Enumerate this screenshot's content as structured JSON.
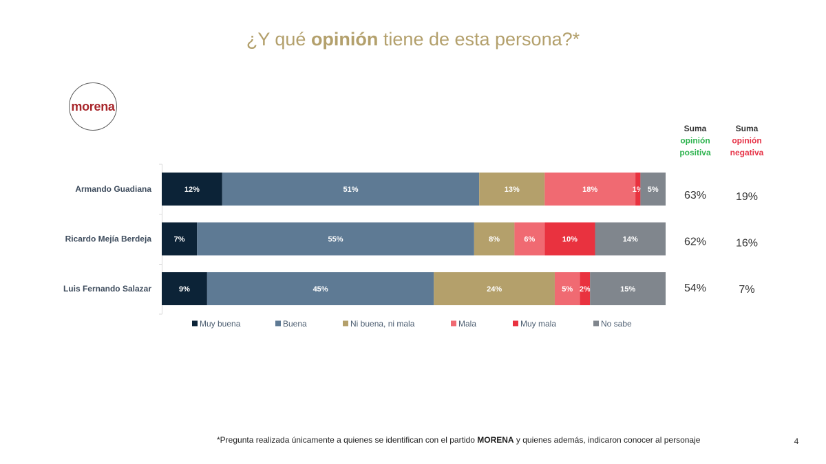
{
  "slide": {
    "logo_text": "morena",
    "footnote_pre": "*Pregunta realizada únicamente a quienes se identifican con el partido ",
    "footnote_bold": "MORENA",
    "footnote_post": " y quienes además, indicaron conocer al personaje",
    "page_number": "4"
  },
  "colors": {
    "title": "#b3a06c",
    "logo": "#a8262b",
    "heading": "#333333",
    "positive": "#2eb34f",
    "negative": "#e63347"
  },
  "chart_data": {
    "type": "bar",
    "stacked": true,
    "horizontal": true,
    "title": {
      "pre": "¿Y qué ",
      "bold": "opinión",
      "post": " tiene de esta persona?*"
    },
    "categories": [
      "Armando Guadiana",
      "Ricardo Mejía Berdeja",
      "Luis Fernando Salazar"
    ],
    "series": [
      {
        "name": "Muy buena",
        "color": "#0c2337",
        "values": [
          12,
          7,
          9
        ]
      },
      {
        "name": "Buena",
        "color": "#5e7a94",
        "values": [
          51,
          55,
          45
        ]
      },
      {
        "name": "Ni buena, ni mala",
        "color": "#b4a06b",
        "values": [
          13,
          8,
          24
        ]
      },
      {
        "name": "Mala",
        "color": "#f06a72",
        "values": [
          18,
          6,
          5
        ]
      },
      {
        "name": "Muy mala",
        "color": "#e9323f",
        "values": [
          1,
          10,
          2
        ]
      },
      {
        "name": "No sabe",
        "color": "#80868d",
        "values": [
          5,
          14,
          15
        ]
      }
    ],
    "value_suffix": "%",
    "xlim": [
      0,
      100
    ],
    "legend_position": "bottom",
    "summary": {
      "positive": {
        "header": [
          "Suma",
          "opinión",
          "positiva"
        ],
        "values": [
          63,
          62,
          54
        ]
      },
      "negative": {
        "header": [
          "Suma",
          "opinión",
          "negativa"
        ],
        "values": [
          19,
          16,
          7
        ]
      }
    }
  }
}
